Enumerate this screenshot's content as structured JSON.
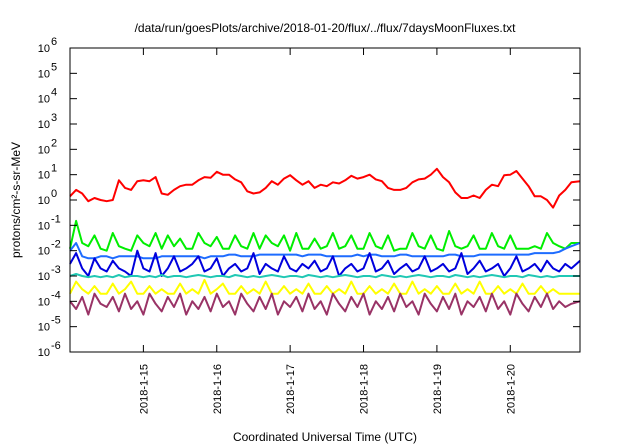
{
  "chart_data": {
    "type": "line",
    "title": "/data/run/goesPlots/archive/2018-01-20/flux/../flux/7daysMoonFluxes.txt",
    "xlabel": "Coordinated Universal Time (UTC)",
    "ylabel": "protons/cm²-s-sr-MeV",
    "yscale": "log",
    "ylim": [
      1e-06,
      1000000.0
    ],
    "xlim": [
      14.0,
      20.95
    ],
    "grid": false,
    "legend": "none",
    "y_ticks": [
      {
        "value": 1e-06,
        "base": "10",
        "exp": "-6"
      },
      {
        "value": 1e-05,
        "base": "10",
        "exp": "-5"
      },
      {
        "value": 0.0001,
        "base": "10",
        "exp": "-4"
      },
      {
        "value": 0.001,
        "base": "10",
        "exp": "-3"
      },
      {
        "value": 0.01,
        "base": "10",
        "exp": "-2"
      },
      {
        "value": 0.1,
        "base": "10",
        "exp": "-1"
      },
      {
        "value": 1,
        "base": "10",
        "exp": "0"
      },
      {
        "value": 10,
        "base": "10",
        "exp": "1"
      },
      {
        "value": 100,
        "base": "10",
        "exp": "2"
      },
      {
        "value": 1000,
        "base": "10",
        "exp": "3"
      },
      {
        "value": 10000,
        "base": "10",
        "exp": "4"
      },
      {
        "value": 100000,
        "base": "10",
        "exp": "5"
      },
      {
        "value": 1000000,
        "base": "10",
        "exp": "6"
      }
    ],
    "x_ticks": [
      {
        "value": 15,
        "label": "2018-1-15"
      },
      {
        "value": 16,
        "label": "2018-1-16"
      },
      {
        "value": 17,
        "label": "2018-1-17"
      },
      {
        "value": 18,
        "label": "2018-1-18"
      },
      {
        "value": 19,
        "label": "2018-1-19"
      },
      {
        "value": 20,
        "label": "2018-1-20"
      }
    ],
    "x": [
      14.0,
      14.0833,
      14.1667,
      14.25,
      14.3333,
      14.4167,
      14.5,
      14.5833,
      14.6667,
      14.75,
      14.8333,
      14.9167,
      15.0,
      15.0833,
      15.1667,
      15.25,
      15.3333,
      15.4167,
      15.5,
      15.5833,
      15.6667,
      15.75,
      15.8333,
      15.9167,
      16.0,
      16.0833,
      16.1667,
      16.25,
      16.3333,
      16.4167,
      16.5,
      16.5833,
      16.6667,
      16.75,
      16.8333,
      16.9167,
      17.0,
      17.0833,
      17.1667,
      17.25,
      17.3333,
      17.4167,
      17.5,
      17.5833,
      17.6667,
      17.75,
      17.8333,
      17.9167,
      18.0,
      18.0833,
      18.1667,
      18.25,
      18.3333,
      18.4167,
      18.5,
      18.5833,
      18.6667,
      18.75,
      18.8333,
      18.9167,
      19.0,
      19.0833,
      19.1667,
      19.25,
      19.3333,
      19.4167,
      19.5,
      19.5833,
      19.6667,
      19.75,
      19.8333,
      19.9167,
      20.0,
      20.0833,
      20.1667,
      20.25,
      20.3333,
      20.4167,
      20.5,
      20.5833,
      20.6667,
      20.75,
      20.8333,
      20.95
    ],
    "series": [
      {
        "color": "#ff0000",
        "values": [
          1.4,
          2.5,
          1.8,
          0.9,
          1.2,
          1.0,
          0.9,
          1.0,
          6.0,
          3.0,
          2.5,
          5.5,
          6.0,
          5.5,
          8.0,
          1.8,
          1.6,
          2.5,
          3.5,
          4.0,
          4.0,
          6.0,
          8.0,
          7.5,
          13.0,
          10.0,
          10.0,
          6.5,
          5.0,
          2.2,
          1.8,
          2.0,
          3.0,
          5.5,
          4.0,
          7.0,
          9.5,
          6.0,
          4.0,
          5.5,
          3.0,
          4.0,
          3.5,
          5.0,
          4.5,
          6.0,
          9.0,
          7.0,
          8.0,
          10.0,
          6.5,
          5.5,
          3.0,
          2.5,
          2.5,
          3.0,
          5.0,
          6.5,
          7.0,
          10.0,
          17.0,
          8.0,
          5.0,
          2.0,
          1.2,
          1.2,
          1.5,
          1.2,
          2.5,
          4.0,
          3.5,
          9.5,
          10.0,
          14.0,
          7.0,
          3.5,
          1.4,
          1.4,
          1.0,
          0.5,
          1.5,
          2.5,
          5.0,
          5.5
        ]
      },
      {
        "color": "#00ee00",
        "values": [
          0.012,
          0.15,
          0.02,
          0.015,
          0.04,
          0.012,
          0.01,
          0.05,
          0.015,
          0.012,
          0.01,
          0.04,
          0.02,
          0.015,
          0.05,
          0.012,
          0.04,
          0.015,
          0.03,
          0.012,
          0.012,
          0.05,
          0.02,
          0.015,
          0.035,
          0.012,
          0.012,
          0.04,
          0.015,
          0.012,
          0.05,
          0.012,
          0.04,
          0.02,
          0.015,
          0.04,
          0.01,
          0.05,
          0.012,
          0.012,
          0.03,
          0.012,
          0.015,
          0.05,
          0.012,
          0.015,
          0.04,
          0.012,
          0.012,
          0.05,
          0.015,
          0.012,
          0.04,
          0.01,
          0.012,
          0.012,
          0.05,
          0.015,
          0.012,
          0.04,
          0.012,
          0.01,
          0.06,
          0.015,
          0.012,
          0.015,
          0.04,
          0.012,
          0.012,
          0.05,
          0.015,
          0.012,
          0.04,
          0.012,
          0.012,
          0.012,
          0.015,
          0.012,
          0.05,
          0.02,
          0.015,
          0.012,
          0.02,
          0.02
        ]
      },
      {
        "color": "#1e6cff",
        "values": [
          0.01,
          0.02,
          0.006,
          0.005,
          0.005,
          0.006,
          0.006,
          0.005,
          0.006,
          0.006,
          0.006,
          0.006,
          0.005,
          0.005,
          0.005,
          0.006,
          0.006,
          0.006,
          0.006,
          0.006,
          0.006,
          0.006,
          0.005,
          0.006,
          0.006,
          0.006,
          0.007,
          0.007,
          0.006,
          0.006,
          0.006,
          0.007,
          0.007,
          0.007,
          0.007,
          0.007,
          0.007,
          0.007,
          0.006,
          0.007,
          0.007,
          0.007,
          0.006,
          0.006,
          0.006,
          0.006,
          0.006,
          0.007,
          0.006,
          0.007,
          0.007,
          0.006,
          0.006,
          0.006,
          0.007,
          0.007,
          0.006,
          0.006,
          0.006,
          0.006,
          0.006,
          0.006,
          0.007,
          0.007,
          0.006,
          0.006,
          0.006,
          0.007,
          0.007,
          0.007,
          0.007,
          0.007,
          0.007,
          0.007,
          0.007,
          0.007,
          0.008,
          0.008,
          0.008,
          0.008,
          0.009,
          0.012,
          0.015,
          0.02
        ]
      },
      {
        "color": "#0000dd",
        "values": [
          0.003,
          0.008,
          0.002,
          0.001,
          0.005,
          0.002,
          0.0015,
          0.004,
          0.002,
          0.0015,
          0.001,
          0.01,
          0.002,
          0.0015,
          0.008,
          0.001,
          0.002,
          0.006,
          0.0015,
          0.002,
          0.003,
          0.006,
          0.0015,
          0.002,
          0.005,
          0.001,
          0.002,
          0.003,
          0.0015,
          0.002,
          0.008,
          0.0012,
          0.003,
          0.002,
          0.0015,
          0.006,
          0.002,
          0.0015,
          0.003,
          0.002,
          0.004,
          0.0015,
          0.002,
          0.006,
          0.001,
          0.002,
          0.003,
          0.0015,
          0.002,
          0.008,
          0.0015,
          0.002,
          0.004,
          0.0012,
          0.002,
          0.003,
          0.0015,
          0.002,
          0.006,
          0.0015,
          0.002,
          0.003,
          0.0015,
          0.002,
          0.008,
          0.0012,
          0.002,
          0.004,
          0.0015,
          0.002,
          0.003,
          0.001,
          0.002,
          0.006,
          0.0015,
          0.002,
          0.003,
          0.0015,
          0.004,
          0.002,
          0.0015,
          0.003,
          0.002,
          0.004
        ]
      },
      {
        "color": "#20c8b4",
        "values": [
          0.001,
          0.0012,
          0.001,
          0.0009,
          0.001,
          0.0009,
          0.001,
          0.0009,
          0.0011,
          0.0009,
          0.001,
          0.001,
          0.0009,
          0.001,
          0.0009,
          0.0011,
          0.0009,
          0.001,
          0.001,
          0.0009,
          0.001,
          0.0011,
          0.001,
          0.0009,
          0.001,
          0.001,
          0.0009,
          0.0011,
          0.001,
          0.0009,
          0.001,
          0.0009,
          0.001,
          0.0011,
          0.001,
          0.0009,
          0.001,
          0.001,
          0.0009,
          0.0011,
          0.001,
          0.0009,
          0.001,
          0.0009,
          0.001,
          0.0011,
          0.001,
          0.0009,
          0.001,
          0.001,
          0.0009,
          0.0011,
          0.001,
          0.0009,
          0.001,
          0.0009,
          0.001,
          0.0011,
          0.001,
          0.0009,
          0.001,
          0.001,
          0.0009,
          0.0011,
          0.001,
          0.0009,
          0.001,
          0.0009,
          0.001,
          0.0011,
          0.001,
          0.0009,
          0.001,
          0.001,
          0.0009,
          0.0011,
          0.001,
          0.0009,
          0.001,
          0.0009,
          0.001,
          0.001,
          0.001,
          0.001
        ]
      },
      {
        "color": "#ffff00",
        "values": [
          0.0002,
          0.0006,
          0.0003,
          0.0002,
          0.0004,
          0.0002,
          0.0002,
          0.0005,
          0.0002,
          0.0003,
          0.0006,
          0.0002,
          0.0002,
          0.0004,
          0.0002,
          0.0003,
          0.0002,
          0.0002,
          0.0005,
          0.0002,
          0.0003,
          0.0002,
          0.0007,
          0.0002,
          0.0003,
          0.0005,
          0.0002,
          0.0002,
          0.0004,
          0.0002,
          0.0003,
          0.0002,
          0.0006,
          0.0002,
          0.0002,
          0.0004,
          0.0002,
          0.0003,
          0.0002,
          0.0005,
          0.0002,
          0.0002,
          0.0004,
          0.0002,
          0.0003,
          0.0002,
          0.0006,
          0.0002,
          0.0002,
          0.0004,
          0.0002,
          0.0003,
          0.0002,
          0.0005,
          0.0002,
          0.0002,
          0.0006,
          0.0002,
          0.0003,
          0.0002,
          0.0004,
          0.0002,
          0.0002,
          0.0005,
          0.0002,
          0.0003,
          0.0002,
          0.0006,
          0.0002,
          0.0002,
          0.0004,
          0.0002,
          0.0003,
          0.0002,
          0.0005,
          0.0002,
          0.0002,
          0.0004,
          0.0002,
          0.0003,
          0.0002,
          0.0002,
          0.0002,
          0.0002
        ]
      },
      {
        "color": "#993366",
        "values": [
          0.0001,
          5e-05,
          0.00015,
          3e-05,
          0.0002,
          8e-05,
          6e-05,
          0.00015,
          4e-05,
          0.0002,
          5e-05,
          0.0001,
          3e-05,
          0.0002,
          8e-05,
          4e-05,
          0.00015,
          6e-05,
          0.0002,
          3e-05,
          0.0001,
          5e-05,
          0.00015,
          4e-05,
          0.0002,
          6e-05,
          0.0001,
          3e-05,
          0.0002,
          8e-05,
          4e-05,
          0.00015,
          5e-05,
          0.0002,
          3e-05,
          0.0001,
          6e-05,
          0.00015,
          4e-05,
          0.0002,
          5e-05,
          0.0001,
          3e-05,
          0.0002,
          8e-05,
          4e-05,
          0.00015,
          6e-05,
          0.0002,
          3e-05,
          0.0001,
          5e-05,
          0.00015,
          4e-05,
          0.0002,
          6e-05,
          0.0001,
          3e-05,
          0.0002,
          8e-05,
          4e-05,
          0.00015,
          5e-05,
          0.0002,
          3e-05,
          0.0001,
          6e-05,
          0.00015,
          4e-05,
          0.0002,
          5e-05,
          0.0001,
          3e-05,
          0.0002,
          8e-05,
          4e-05,
          0.00015,
          6e-05,
          0.0002,
          5e-05,
          0.0001,
          6e-05,
          8e-05,
          0.0001
        ]
      }
    ]
  }
}
